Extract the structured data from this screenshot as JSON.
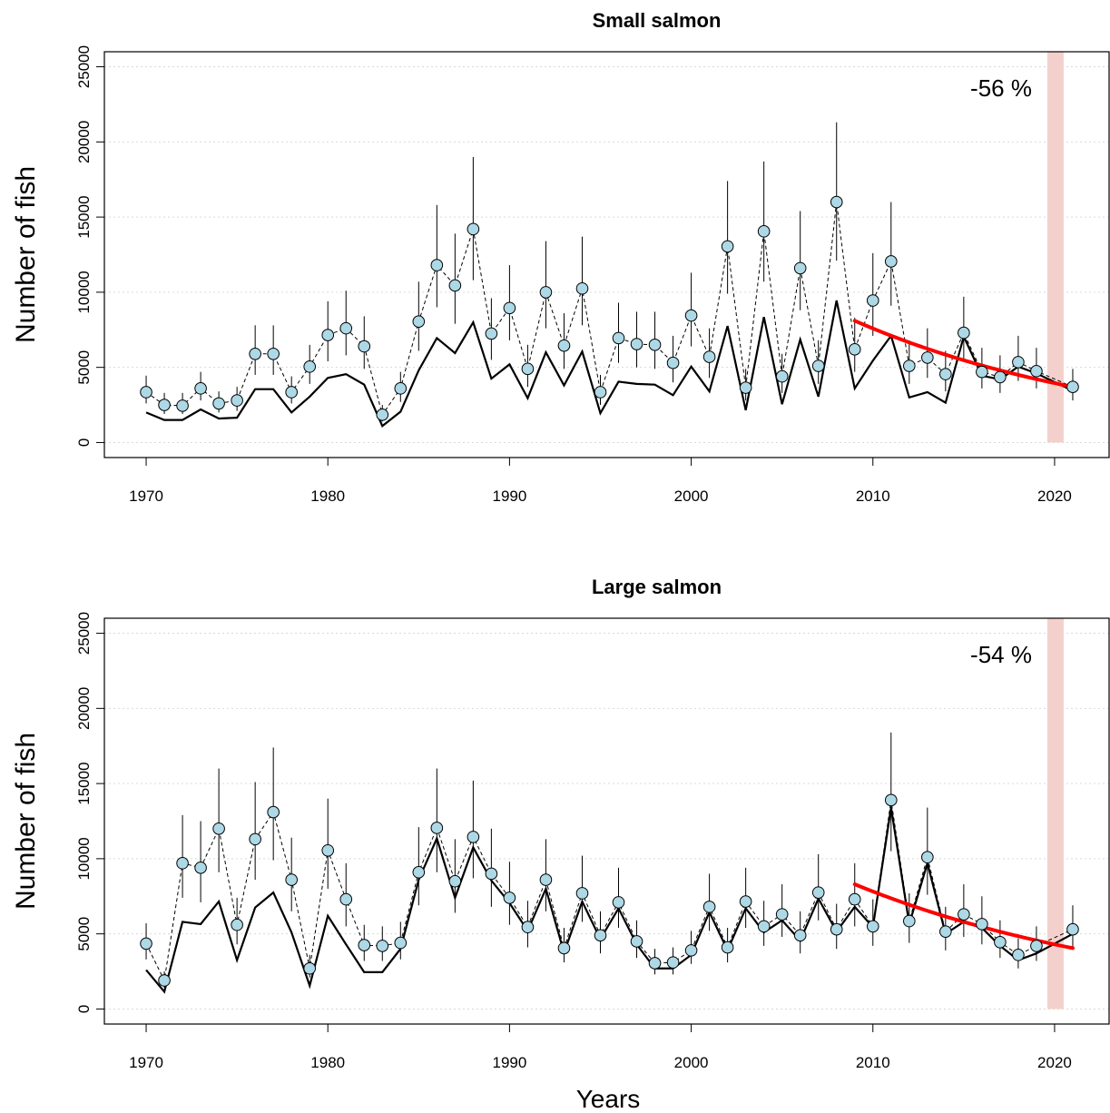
{
  "chart_data": [
    {
      "type": "line",
      "title": "Small salmon",
      "ylabel": "Number of fish",
      "xlabel": "",
      "xlim": [
        1967.7,
        2023
      ],
      "ylim": [
        -1000,
        26000
      ],
      "x_ticks": [
        1970,
        1980,
        1990,
        2000,
        2010,
        2020
      ],
      "y_ticks": [
        0,
        5000,
        10000,
        15000,
        20000,
        25000
      ],
      "grid": "horizontal dotted",
      "annotation": "-56 %",
      "highlight_x": [
        2019.6,
        2020.5
      ],
      "highlight_color": "#f4d0cc",
      "colors": {
        "points": "#add8e6",
        "trend": "#ff0000",
        "lines": "#000000"
      },
      "series": [
        {
          "role": "estimate_points_dashed",
          "x": [
            1970,
            1971,
            1972,
            1973,
            1974,
            1975,
            1976,
            1977,
            1978,
            1979,
            1980,
            1981,
            1982,
            1983,
            1984,
            1985,
            1986,
            1987,
            1988,
            1989,
            1990,
            1991,
            1992,
            1993,
            1994,
            1995,
            1996,
            1997,
            1998,
            1999,
            2000,
            2001,
            2002,
            2003,
            2004,
            2005,
            2006,
            2007,
            2008,
            2009,
            2010,
            2011,
            2012,
            2013,
            2014,
            2015,
            2016,
            2017,
            2018,
            2019,
            2021
          ],
          "values": [
            3350,
            2500,
            2450,
            3600,
            2600,
            2800,
            5900,
            5900,
            3350,
            5050,
            7150,
            7600,
            6400,
            1850,
            3600,
            8050,
            11800,
            10450,
            14200,
            7250,
            8950,
            4900,
            10000,
            6450,
            10250,
            3350,
            6950,
            6550,
            6500,
            5300,
            8450,
            5700,
            13050,
            3650,
            14050,
            4400,
            11600,
            5100,
            16000,
            6200,
            9450,
            12050,
            5100,
            5650,
            4550,
            7300,
            4700,
            4350,
            5350,
            4750,
            3700
          ],
          "upper": [
            4450,
            3300,
            3300,
            4700,
            3400,
            3700,
            7800,
            7800,
            4400,
            6500,
            9400,
            10100,
            8400,
            2500,
            4700,
            10700,
            15800,
            13900,
            19000,
            9600,
            11800,
            6500,
            13400,
            8600,
            13700,
            4500,
            9300,
            8700,
            8700,
            7100,
            11300,
            7600,
            17400,
            4900,
            18700,
            5900,
            15400,
            6800,
            21300,
            8300,
            12600,
            16000,
            6800,
            7600,
            6100,
            9700,
            6300,
            5800,
            7100,
            6300,
            4900
          ],
          "lower": [
            2600,
            1900,
            1900,
            2800,
            2000,
            2100,
            4500,
            4500,
            2600,
            3900,
            5400,
            5800,
            4900,
            1400,
            2700,
            6100,
            9000,
            7900,
            10800,
            5500,
            6800,
            3700,
            7600,
            4900,
            7800,
            2500,
            5300,
            5000,
            4900,
            4000,
            6400,
            4300,
            9900,
            2800,
            10700,
            3300,
            8800,
            3900,
            12100,
            4700,
            7100,
            9100,
            3900,
            4300,
            3400,
            5500,
            3600,
            3300,
            4100,
            3600,
            2800
          ]
        },
        {
          "role": "solid_line",
          "x": [
            1970,
            1971,
            1972,
            1973,
            1974,
            1975,
            1976,
            1977,
            1978,
            1979,
            1980,
            1981,
            1982,
            1983,
            1984,
            1985,
            1986,
            1987,
            1988,
            1989,
            1990,
            1991,
            1992,
            1993,
            1994,
            1995,
            1996,
            1997,
            1998,
            1999,
            2000,
            2001,
            2002,
            2003,
            2004,
            2005,
            2006,
            2007,
            2008,
            2009,
            2010,
            2011,
            2012,
            2013,
            2014,
            2015,
            2016,
            2017,
            2018,
            2019,
            2021
          ],
          "values": [
            2000,
            1500,
            1500,
            2200,
            1600,
            1650,
            3550,
            3550,
            2000,
            3050,
            4300,
            4550,
            3850,
            1100,
            2050,
            4800,
            6950,
            5950,
            8000,
            4250,
            5200,
            2950,
            6000,
            3800,
            6050,
            1950,
            4050,
            3900,
            3850,
            3150,
            5050,
            3400,
            7750,
            2150,
            8350,
            2550,
            6850,
            3050,
            9450,
            3600,
            5450,
            7100,
            3000,
            3350,
            2650,
            7050,
            4450,
            4200,
            5050,
            4600,
            3450
          ]
        },
        {
          "role": "trend",
          "x": [
            2009,
            2012,
            2015,
            2018,
            2021
          ],
          "values": [
            8100,
            6600,
            5450,
            4550,
            3700
          ]
        }
      ]
    },
    {
      "type": "line",
      "title": "Large salmon",
      "ylabel": "Number of fish",
      "xlabel": "Years",
      "xlim": [
        1967.7,
        2023
      ],
      "ylim": [
        -1000,
        26000
      ],
      "x_ticks": [
        1970,
        1980,
        1990,
        2000,
        2010,
        2020
      ],
      "y_ticks": [
        0,
        5000,
        10000,
        15000,
        20000,
        25000
      ],
      "grid": "horizontal dotted",
      "annotation": "-54 %",
      "highlight_x": [
        2019.6,
        2020.5
      ],
      "highlight_color": "#f4d0cc",
      "colors": {
        "points": "#add8e6",
        "trend": "#ff0000",
        "lines": "#000000"
      },
      "series": [
        {
          "role": "estimate_points_dashed",
          "x": [
            1970,
            1971,
            1972,
            1973,
            1974,
            1975,
            1976,
            1977,
            1978,
            1979,
            1980,
            1981,
            1982,
            1983,
            1984,
            1985,
            1986,
            1987,
            1988,
            1989,
            1990,
            1991,
            1992,
            1993,
            1994,
            1995,
            1996,
            1997,
            1998,
            1999,
            2000,
            2001,
            2002,
            2003,
            2004,
            2005,
            2006,
            2007,
            2008,
            2009,
            2010,
            2011,
            2012,
            2013,
            2014,
            2015,
            2016,
            2017,
            2018,
            2019,
            2021
          ],
          "values": [
            4350,
            1900,
            9700,
            9400,
            12000,
            5600,
            11300,
            13100,
            8600,
            2700,
            10550,
            7300,
            4250,
            4200,
            4400,
            9100,
            12050,
            8500,
            11450,
            9000,
            7400,
            5450,
            8600,
            4050,
            7700,
            4900,
            7100,
            4500,
            3050,
            3100,
            3900,
            6800,
            4100,
            7150,
            5500,
            6300,
            4900,
            7750,
            5300,
            7300,
            5500,
            13900,
            5850,
            10100,
            5150,
            6300,
            5650,
            4450,
            3600,
            4200,
            5300
          ],
          "upper": [
            5700,
            2500,
            12900,
            12500,
            16000,
            7400,
            15100,
            17400,
            11400,
            3600,
            14000,
            9700,
            5600,
            5500,
            5800,
            12100,
            16000,
            11300,
            15200,
            12000,
            9800,
            7200,
            11300,
            5400,
            10200,
            6500,
            9400,
            5900,
            4000,
            4100,
            5200,
            9000,
            5400,
            9400,
            7200,
            8300,
            6500,
            10300,
            7000,
            9700,
            7300,
            18400,
            7700,
            13400,
            6800,
            8300,
            7500,
            5900,
            4700,
            5500,
            6900
          ],
          "lower": [
            3300,
            1400,
            7400,
            7100,
            9100,
            4300,
            8600,
            9900,
            6500,
            2100,
            8000,
            5500,
            3200,
            3200,
            3300,
            6900,
            9100,
            6400,
            8700,
            6800,
            5600,
            4100,
            6500,
            3100,
            5800,
            3700,
            5400,
            3400,
            2300,
            2300,
            3000,
            5200,
            3100,
            5400,
            4200,
            4800,
            3700,
            5900,
            4000,
            5500,
            4200,
            10500,
            4400,
            7600,
            3900,
            4800,
            4300,
            3400,
            2700,
            3200,
            4000
          ]
        },
        {
          "role": "solid_line",
          "x": [
            1970,
            1971,
            1972,
            1973,
            1974,
            1975,
            1976,
            1977,
            1978,
            1979,
            1980,
            1981,
            1982,
            1983,
            1984,
            1985,
            1986,
            1987,
            1988,
            1989,
            1990,
            1991,
            1992,
            1993,
            1994,
            1995,
            1996,
            1997,
            1998,
            1999,
            2000,
            2001,
            2002,
            2003,
            2004,
            2005,
            2006,
            2007,
            2008,
            2009,
            2010,
            2011,
            2012,
            2013,
            2014,
            2015,
            2016,
            2017,
            2018,
            2019,
            2021
          ],
          "values": [
            2600,
            1150,
            5800,
            5650,
            7150,
            3250,
            6750,
            7750,
            5100,
            1550,
            6200,
            4300,
            2450,
            2450,
            4000,
            8600,
            11350,
            7400,
            10750,
            8550,
            7050,
            5200,
            8000,
            3750,
            7150,
            4650,
            6700,
            4300,
            2700,
            2700,
            3600,
            6450,
            3900,
            6700,
            5100,
            5900,
            4550,
            7350,
            5150,
            6800,
            5450,
            13400,
            5650,
            9700,
            5000,
            5800,
            5400,
            4200,
            3250,
            3700,
            5000
          ]
        },
        {
          "role": "trend",
          "x": [
            2009,
            2012,
            2015,
            2018,
            2021
          ],
          "values": [
            8300,
            6850,
            5750,
            4850,
            4050
          ]
        }
      ]
    }
  ]
}
